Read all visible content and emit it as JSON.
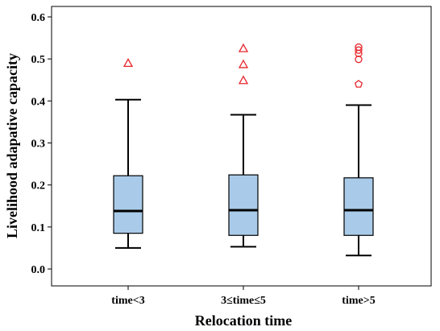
{
  "chart_data": {
    "type": "box",
    "title": "",
    "xlabel": "Relocation time",
    "ylabel": "Livelihood adapative capacity",
    "ylim": [
      0,
      0.6
    ],
    "yticks": [
      "0.0",
      "0.1",
      "0.2",
      "0.3",
      "0.4",
      "0.5",
      "0.6"
    ],
    "categories": [
      "time<3",
      "3≤time≤5",
      "time>5"
    ],
    "boxes": [
      {
        "whisker_low": 0.05,
        "q1": 0.085,
        "median": 0.138,
        "q3": 0.222,
        "whisker_high": 0.403,
        "outliers": [
          {
            "value": 0.49,
            "marker": "triangle"
          }
        ]
      },
      {
        "whisker_low": 0.053,
        "q1": 0.08,
        "median": 0.14,
        "q3": 0.224,
        "whisker_high": 0.367,
        "outliers": [
          {
            "value": 0.525,
            "marker": "triangle"
          },
          {
            "value": 0.487,
            "marker": "triangle"
          },
          {
            "value": 0.449,
            "marker": "triangle"
          }
        ]
      },
      {
        "whisker_low": 0.032,
        "q1": 0.08,
        "median": 0.14,
        "q3": 0.217,
        "whisker_high": 0.39,
        "outliers": [
          {
            "value": 0.528,
            "marker": "circle"
          },
          {
            "value": 0.521,
            "marker": "circle"
          },
          {
            "value": 0.513,
            "marker": "circle"
          },
          {
            "value": 0.499,
            "marker": "circle"
          },
          {
            "value": 0.44,
            "marker": "pentagon"
          }
        ]
      }
    ],
    "box_color": "#a9cbe9",
    "outlier_color": "#e8262b",
    "grid": false,
    "legend": "none"
  }
}
